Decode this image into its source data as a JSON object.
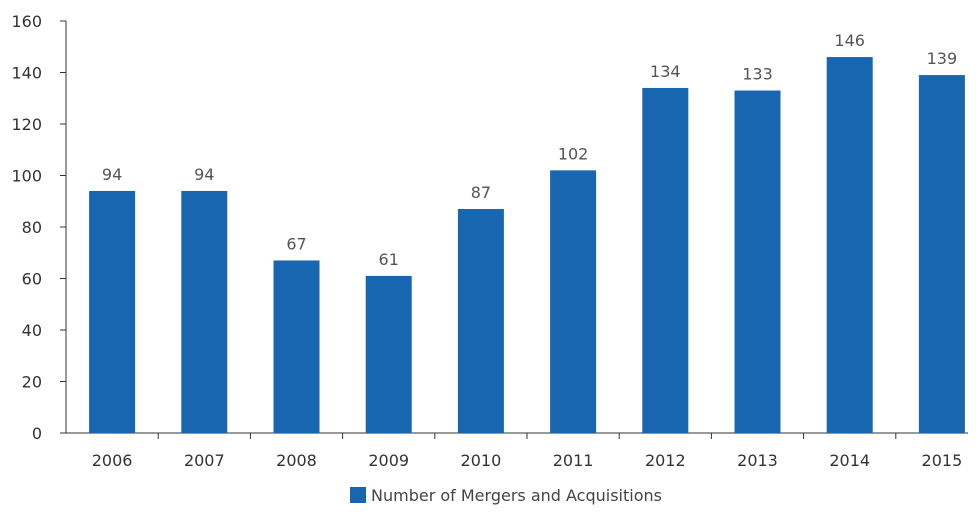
{
  "chart_data": {
    "type": "bar",
    "categories": [
      "2006",
      "2007",
      "2008",
      "2009",
      "2010",
      "2011",
      "2012",
      "2013",
      "2014",
      "2015"
    ],
    "series": [
      {
        "name": "Number of Mergers and Acquisitions",
        "values": [
          94,
          94,
          67,
          61,
          87,
          102,
          134,
          133,
          146,
          139
        ],
        "color": "#1866b0"
      }
    ],
    "data_labels": [
      "94",
      "94",
      "67",
      "61",
      "87",
      "102",
      "134",
      "133",
      "146",
      "139"
    ],
    "y_ticks": [
      "0",
      "20",
      "40",
      "60",
      "80",
      "100",
      "120",
      "140",
      "160"
    ],
    "ylim": [
      0,
      160
    ],
    "grid": false,
    "legend_position": "bottom-center",
    "title": "",
    "xlabel": "",
    "ylabel": ""
  }
}
